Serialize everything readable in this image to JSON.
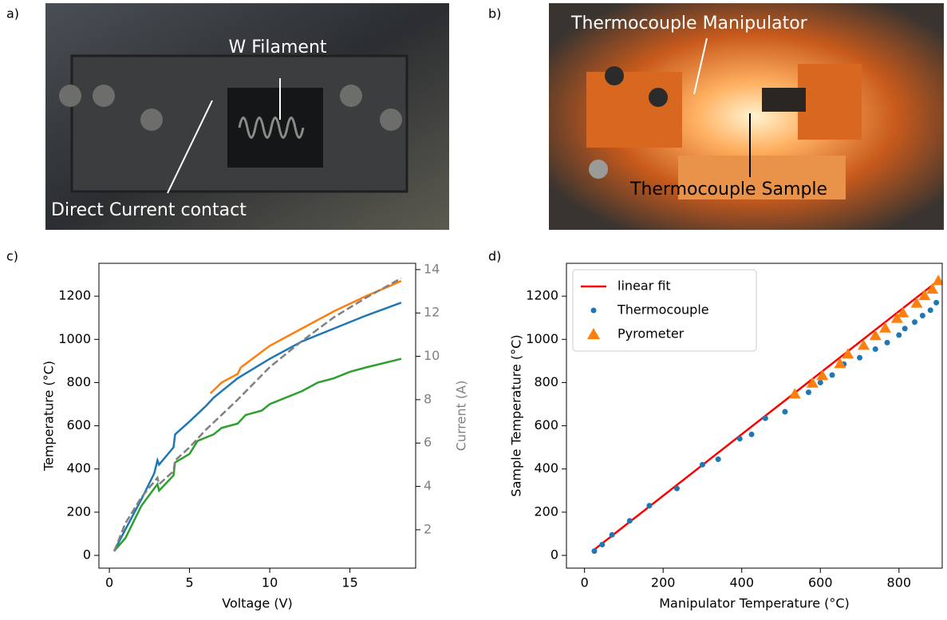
{
  "panels": [
    {
      "label": "a)",
      "annotations": [
        "W Filament",
        "Direct Current contact"
      ]
    },
    {
      "label": "b)",
      "annotations": [
        "Thermocouple Manipulator",
        "Thermocouple Sample"
      ]
    }
  ],
  "chart_data": [
    {
      "type": "line",
      "panel_label": "c)",
      "x_label": "Voltage (V)",
      "y_label": "Temperature (°C)",
      "y2_label": "Current (A)",
      "y2_color": "#808080",
      "xlim": [
        -0.65,
        19.1
      ],
      "xticks": [
        0,
        5,
        10,
        15
      ],
      "ylim": [
        -59,
        1352
      ],
      "yticks": [
        0,
        200,
        400,
        600,
        800,
        1000,
        1200
      ],
      "y2lim": [
        0.23,
        14.29
      ],
      "y2ticks": [
        2,
        4,
        6,
        8,
        10,
        12,
        14
      ],
      "series": [
        {
          "type": "line",
          "color": "#1f77b4",
          "x": [
            0.3,
            1,
            2,
            2.8,
            3.0,
            3.1,
            4,
            4.1,
            5,
            6,
            6.5,
            8,
            10,
            12,
            14,
            16,
            18.2
          ],
          "values": [
            20,
            120,
            260,
            380,
            440,
            420,
            500,
            560,
            620,
            690,
            730,
            820,
            910,
            990,
            1050,
            1110,
            1170
          ]
        },
        {
          "type": "line",
          "color": "#ff7f0e",
          "x": [
            6.3,
            7,
            8,
            8.2,
            10,
            12,
            14,
            16,
            18.2
          ],
          "values": [
            750,
            800,
            840,
            870,
            970,
            1050,
            1130,
            1200,
            1270
          ]
        },
        {
          "type": "line",
          "color": "#2ca02c",
          "x": [
            0.3,
            1,
            2,
            3,
            3.1,
            4,
            4.1,
            5,
            5.5,
            6.5,
            7,
            8,
            8.5,
            9.5,
            10,
            12,
            13,
            14,
            15,
            16,
            18.2
          ],
          "values": [
            20,
            80,
            230,
            330,
            300,
            370,
            430,
            470,
            530,
            560,
            590,
            610,
            650,
            670,
            700,
            760,
            800,
            820,
            850,
            870,
            910
          ]
        },
        {
          "type": "line",
          "color": "#808080",
          "linestyle": "dashed",
          "axis": "y2",
          "x": [
            0.3,
            1,
            2,
            3,
            3.1,
            4,
            4.1,
            5,
            6,
            7,
            8,
            10,
            12,
            14,
            16,
            18.2
          ],
          "values": [
            1.0,
            2.3,
            3.5,
            4.4,
            4.1,
            4.7,
            5.2,
            5.8,
            6.6,
            7.3,
            8.0,
            9.5,
            10.7,
            11.8,
            12.7,
            13.6
          ]
        }
      ]
    },
    {
      "type": "scatter",
      "panel_label": "d)",
      "x_label": "Manipulator Temperature (°C)",
      "y_label": "Sample Temperature (°C)",
      "legend": "upper left",
      "xlim": [
        -46,
        910
      ],
      "xticks": [
        0,
        200,
        400,
        600,
        800
      ],
      "ylim": [
        -59,
        1352
      ],
      "yticks": [
        0,
        200,
        400,
        600,
        800,
        1000,
        1200
      ],
      "series": [
        {
          "type": "line",
          "name": "linear fit",
          "color": "#ff0000",
          "x": [
            20,
            895
          ],
          "values": [
            20,
            1265
          ]
        },
        {
          "type": "scatter",
          "marker": "circle",
          "name": "Thermocouple",
          "color": "#1f77b4",
          "x": [
            25,
            45,
            70,
            115,
            165,
            235,
            300,
            340,
            395,
            425,
            460,
            510,
            535,
            570,
            600,
            630,
            660,
            700,
            740,
            770,
            800,
            815,
            840,
            860,
            880,
            895
          ],
          "values": [
            20,
            50,
            95,
            160,
            230,
            310,
            420,
            445,
            540,
            560,
            635,
            665,
            740,
            755,
            800,
            835,
            885,
            915,
            955,
            985,
            1020,
            1050,
            1080,
            1110,
            1135,
            1170
          ]
        },
        {
          "type": "scatter",
          "marker": "triangle",
          "name": "Pyrometer",
          "color": "#ff7f0e",
          "x": [
            535,
            580,
            605,
            650,
            670,
            710,
            740,
            765,
            795,
            810,
            845,
            865,
            885,
            900
          ],
          "values": [
            745,
            795,
            830,
            885,
            930,
            970,
            1015,
            1050,
            1095,
            1120,
            1165,
            1200,
            1230,
            1270
          ]
        }
      ]
    }
  ]
}
